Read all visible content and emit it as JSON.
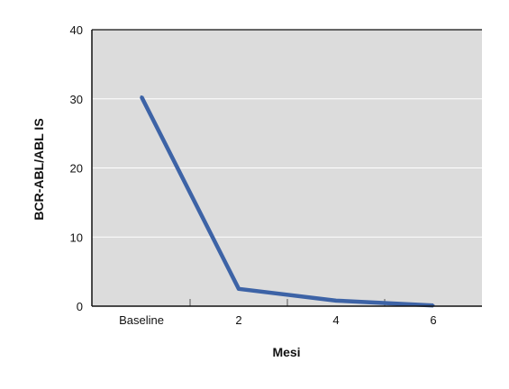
{
  "chart_data": {
    "type": "line",
    "title": "",
    "xlabel": "Mesi",
    "ylabel": "BCR-ABL/ABL IS",
    "categories": [
      "Baseline",
      "2",
      "4",
      "6"
    ],
    "series": [
      {
        "values": [
          30.3,
          2.5,
          0.8,
          0.1
        ],
        "color": "#3d63a6"
      }
    ],
    "ylim": [
      0,
      40
    ],
    "yticks": [
      0,
      10,
      20,
      30,
      40
    ],
    "grid": true,
    "plot_background": "#dcdcdc",
    "gridline_color": "#ffffff",
    "legend": "none"
  }
}
